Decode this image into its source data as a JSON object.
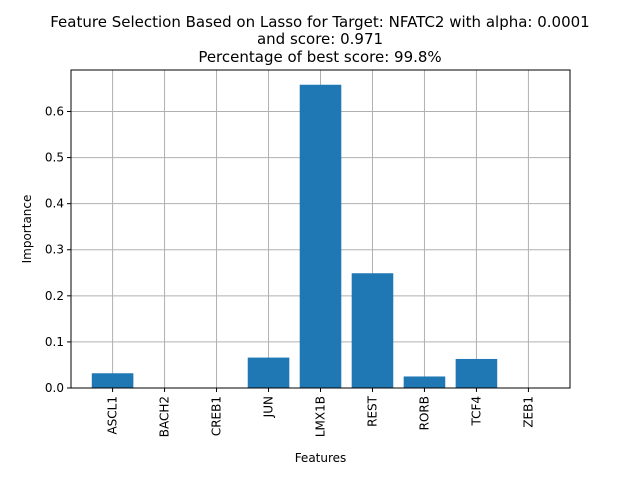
{
  "chart_data": {
    "type": "bar",
    "title_lines": [
      "Feature Selection Based on Lasso for Target: NFATC2 with alpha: 0.0001",
      "and score: 0.971",
      "Percentage of best score: 99.8%"
    ],
    "xlabel": "Features",
    "ylabel": "Importance",
    "categories": [
      "ASCL1",
      "BACH2",
      "CREB1",
      "JUN",
      "LMX1B",
      "REST",
      "RORB",
      "TCF4",
      "ZEB1"
    ],
    "values": [
      0.032,
      0.0,
      0.0,
      0.066,
      0.658,
      0.249,
      0.025,
      0.063,
      0.0
    ],
    "ylim": [
      0,
      0.69
    ],
    "yticks": [
      0.0,
      0.1,
      0.2,
      0.3,
      0.4,
      0.5,
      0.6
    ],
    "ytick_labels": [
      "0.0",
      "0.1",
      "0.2",
      "0.3",
      "0.4",
      "0.5",
      "0.6"
    ],
    "grid": true,
    "bar_color": "#1f77b4",
    "grid_color": "#b0b0b0"
  }
}
